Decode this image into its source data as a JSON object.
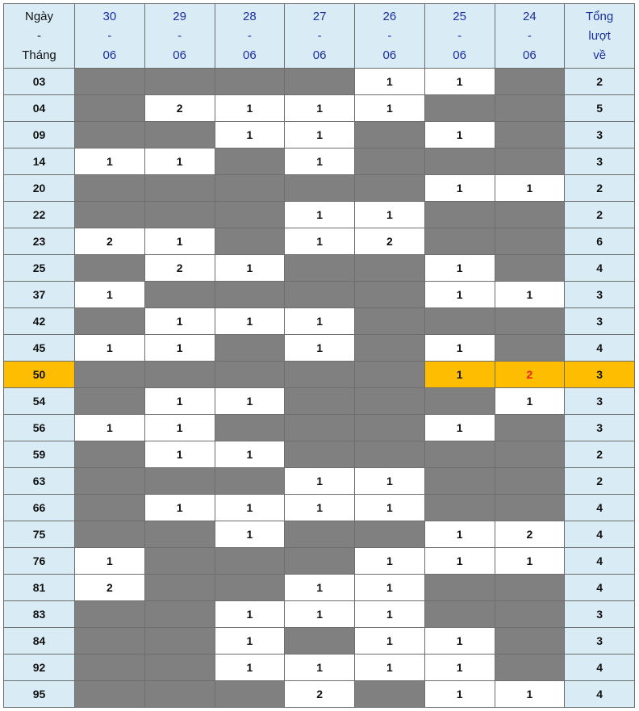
{
  "header": {
    "first": [
      "Ngày",
      "-",
      "Tháng"
    ],
    "dates": [
      [
        "30",
        "-",
        "06"
      ],
      [
        "29",
        "-",
        "06"
      ],
      [
        "28",
        "-",
        "06"
      ],
      [
        "27",
        "-",
        "06"
      ],
      [
        "26",
        "-",
        "06"
      ],
      [
        "25",
        "-",
        "06"
      ],
      [
        "24",
        "-",
        "06"
      ]
    ],
    "total": [
      "Tổng",
      "lượt",
      "về"
    ]
  },
  "colors": {
    "header_bg": "#d9ecf5",
    "empty_cell": "#808080",
    "highlight": "#ffbd00",
    "highlight_value": "#e8221b",
    "date_text": "#1a2ea0"
  },
  "highlighted_row": "50",
  "rows": [
    {
      "num": "03",
      "cells": [
        "",
        "",
        "",
        "",
        "1",
        "1",
        ""
      ],
      "total": "2"
    },
    {
      "num": "04",
      "cells": [
        "",
        "2",
        "1",
        "1",
        "1",
        "",
        ""
      ],
      "total": "5"
    },
    {
      "num": "09",
      "cells": [
        "",
        "",
        "1",
        "1",
        "",
        "1",
        ""
      ],
      "total": "3"
    },
    {
      "num": "14",
      "cells": [
        "1",
        "1",
        "",
        "1",
        "",
        "",
        ""
      ],
      "total": "3"
    },
    {
      "num": "20",
      "cells": [
        "",
        "",
        "",
        "",
        "",
        "1",
        "1"
      ],
      "total": "2"
    },
    {
      "num": "22",
      "cells": [
        "",
        "",
        "",
        "1",
        "1",
        "",
        ""
      ],
      "total": "2"
    },
    {
      "num": "23",
      "cells": [
        "2",
        "1",
        "",
        "1",
        "2",
        "",
        ""
      ],
      "total": "6"
    },
    {
      "num": "25",
      "cells": [
        "",
        "2",
        "1",
        "",
        "",
        "1",
        ""
      ],
      "total": "4"
    },
    {
      "num": "37",
      "cells": [
        "1",
        "",
        "",
        "",
        "",
        "1",
        "1"
      ],
      "total": "3"
    },
    {
      "num": "42",
      "cells": [
        "",
        "1",
        "1",
        "1",
        "",
        "",
        ""
      ],
      "total": "3"
    },
    {
      "num": "45",
      "cells": [
        "1",
        "1",
        "",
        "1",
        "",
        "1",
        ""
      ],
      "total": "4"
    },
    {
      "num": "50",
      "cells": [
        "",
        "",
        "",
        "",
        "",
        "1",
        "2"
      ],
      "total": "3",
      "red_cell": 6
    },
    {
      "num": "54",
      "cells": [
        "",
        "1",
        "1",
        "",
        "",
        "",
        "1"
      ],
      "total": "3"
    },
    {
      "num": "56",
      "cells": [
        "1",
        "1",
        "",
        "",
        "",
        "1",
        ""
      ],
      "total": "3"
    },
    {
      "num": "59",
      "cells": [
        "",
        "1",
        "1",
        "",
        "",
        "",
        ""
      ],
      "total": "2"
    },
    {
      "num": "63",
      "cells": [
        "",
        "",
        "",
        "1",
        "1",
        "",
        ""
      ],
      "total": "2"
    },
    {
      "num": "66",
      "cells": [
        "",
        "1",
        "1",
        "1",
        "1",
        "",
        ""
      ],
      "total": "4"
    },
    {
      "num": "75",
      "cells": [
        "",
        "",
        "1",
        "",
        "",
        "1",
        "2"
      ],
      "total": "4"
    },
    {
      "num": "76",
      "cells": [
        "1",
        "",
        "",
        "",
        "1",
        "1",
        "1"
      ],
      "total": "4"
    },
    {
      "num": "81",
      "cells": [
        "2",
        "",
        "",
        "1",
        "1",
        "",
        ""
      ],
      "total": "4"
    },
    {
      "num": "83",
      "cells": [
        "",
        "",
        "1",
        "1",
        "1",
        "",
        ""
      ],
      "total": "3"
    },
    {
      "num": "84",
      "cells": [
        "",
        "",
        "1",
        "",
        "1",
        "1",
        ""
      ],
      "total": "3"
    },
    {
      "num": "92",
      "cells": [
        "",
        "",
        "1",
        "1",
        "1",
        "1",
        ""
      ],
      "total": "4"
    },
    {
      "num": "95",
      "cells": [
        "",
        "",
        "",
        "2",
        "",
        "1",
        "1"
      ],
      "total": "4"
    }
  ]
}
